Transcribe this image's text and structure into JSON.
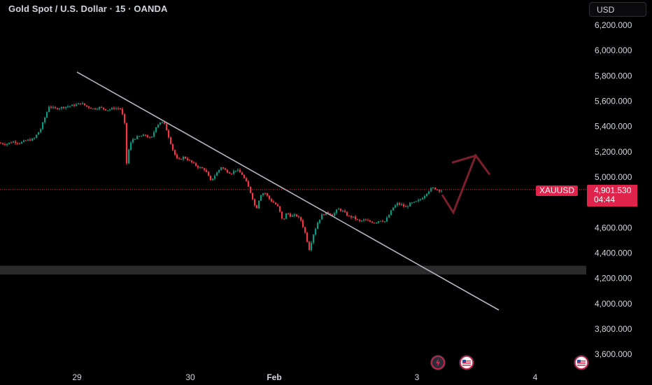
{
  "header": {
    "title": "Gold Spot / U.S. Dollar · 15 · OANDA",
    "currency": "USD"
  },
  "price_marker": {
    "symbol": "XAUUSD",
    "price": "4,901.530",
    "countdown": "04:44",
    "color": "#e0234a"
  },
  "colors": {
    "up": "#089981",
    "down": "#f23645",
    "trendline": "#b2b5be",
    "zone": "#2a2a2a",
    "projection": "#7a1f2b"
  },
  "chart_data": {
    "type": "candlestick",
    "y_axis": {
      "ticks": [
        "6,200.000",
        "6,000.000",
        "5,800.000",
        "5,600.000",
        "5,400.000",
        "5,200.000",
        "5,000.000",
        "4,800.000",
        "4,600.000",
        "4,400.000",
        "4,200.000",
        "4,000.000",
        "3,800.000",
        "3,600.000"
      ],
      "tick_values": [
        6200,
        6000,
        5800,
        5600,
        5400,
        5200,
        5000,
        4800,
        4600,
        4400,
        4200,
        4000,
        3800,
        3600
      ],
      "ylim": [
        3580,
        6290
      ]
    },
    "x_axis": {
      "labels": [
        {
          "text": "29",
          "bold": false
        },
        {
          "text": "30",
          "bold": false
        },
        {
          "text": "Feb",
          "bold": true
        },
        {
          "text": "3",
          "bold": false
        },
        {
          "text": "4",
          "bold": false
        }
      ]
    },
    "price_path": [
      [
        0,
        5270
      ],
      [
        10,
        5260
      ],
      [
        20,
        5280
      ],
      [
        30,
        5270
      ],
      [
        40,
        5290
      ],
      [
        50,
        5300
      ],
      [
        60,
        5380
      ],
      [
        68,
        5500
      ],
      [
        72,
        5560
      ],
      [
        80,
        5540
      ],
      [
        90,
        5550
      ],
      [
        100,
        5560
      ],
      [
        110,
        5570
      ],
      [
        118,
        5585
      ],
      [
        125,
        5560
      ],
      [
        135,
        5540
      ],
      [
        145,
        5550
      ],
      [
        155,
        5530
      ],
      [
        165,
        5545
      ],
      [
        175,
        5540
      ],
      [
        180,
        5420
      ],
      [
        183,
        5110
      ],
      [
        187,
        5250
      ],
      [
        192,
        5300
      ],
      [
        200,
        5320
      ],
      [
        210,
        5330
      ],
      [
        218,
        5300
      ],
      [
        225,
        5400
      ],
      [
        232,
        5440
      ],
      [
        238,
        5410
      ],
      [
        243,
        5320
      ],
      [
        250,
        5200
      ],
      [
        256,
        5130
      ],
      [
        265,
        5160
      ],
      [
        275,
        5120
      ],
      [
        285,
        5080
      ],
      [
        295,
        5060
      ],
      [
        303,
        4970
      ],
      [
        310,
        5020
      ],
      [
        318,
        5080
      ],
      [
        325,
        5050
      ],
      [
        332,
        5030
      ],
      [
        340,
        5060
      ],
      [
        348,
        5020
      ],
      [
        355,
        4950
      ],
      [
        362,
        4850
      ],
      [
        368,
        4740
      ],
      [
        374,
        4860
      ],
      [
        380,
        4880
      ],
      [
        388,
        4820
      ],
      [
        395,
        4790
      ],
      [
        400,
        4760
      ],
      [
        406,
        4650
      ],
      [
        412,
        4720
      ],
      [
        418,
        4690
      ],
      [
        425,
        4700
      ],
      [
        432,
        4660
      ],
      [
        438,
        4560
      ],
      [
        444,
        4430
      ],
      [
        450,
        4550
      ],
      [
        456,
        4640
      ],
      [
        462,
        4700
      ],
      [
        470,
        4720
      ],
      [
        478,
        4700
      ],
      [
        485,
        4750
      ],
      [
        492,
        4730
      ],
      [
        500,
        4690
      ],
      [
        508,
        4680
      ],
      [
        515,
        4650
      ],
      [
        522,
        4660
      ],
      [
        530,
        4650
      ],
      [
        538,
        4640
      ],
      [
        545,
        4660
      ],
      [
        552,
        4650
      ],
      [
        558,
        4700
      ],
      [
        564,
        4760
      ],
      [
        570,
        4790
      ],
      [
        576,
        4780
      ],
      [
        582,
        4760
      ],
      [
        588,
        4790
      ],
      [
        595,
        4800
      ],
      [
        602,
        4820
      ],
      [
        608,
        4850
      ],
      [
        614,
        4890
      ],
      [
        620,
        4915
      ],
      [
        626,
        4905
      ],
      [
        630,
        4895
      ]
    ],
    "overlays": {
      "trendline": [
        [
          110,
          5830
        ],
        [
          713,
          3950
        ]
      ],
      "horizontal_zone": [
        4230,
        4300
      ],
      "projection_path": [
        [
          632,
          4860
        ],
        [
          648,
          4720
        ],
        [
          680,
          5170
        ],
        [
          700,
          5020
        ]
      ]
    }
  }
}
